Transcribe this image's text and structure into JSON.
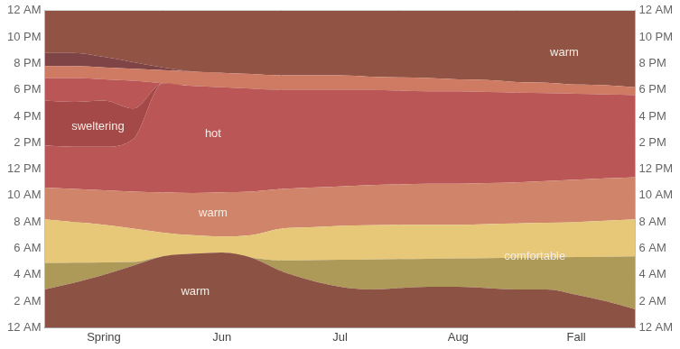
{
  "chart_data": {
    "type": "area",
    "stacked": true,
    "grid": true,
    "categories": [
      null,
      null,
      "Spring",
      null,
      null,
      null,
      "Jun",
      null,
      null,
      null,
      "Jul",
      null,
      null,
      null,
      "Aug",
      null,
      null,
      null,
      "Fall",
      null,
      null
    ],
    "series": [
      {
        "color": "#8c5244",
        "values": [
          2.9,
          3.4,
          4.0,
          4.7,
          5.4,
          5.6,
          5.7,
          5.3,
          4.3,
          3.6,
          3.1,
          2.9,
          3.0,
          3.1,
          3.1,
          3.0,
          2.9,
          2.9,
          2.5,
          2.0,
          1.4
        ]
      },
      {
        "color": "#ad9a58",
        "values": [
          2.0,
          1.52,
          0.95,
          0.27,
          0,
          0,
          0,
          0,
          0.8,
          1.52,
          2.05,
          2.27,
          2.2,
          2.12,
          2.15,
          2.27,
          2.4,
          2.42,
          2.85,
          3.37,
          4.0
        ]
      },
      {
        "color": "#e6c878",
        "values": [
          3.3,
          3.08,
          2.85,
          2.53,
          1.8,
          1.4,
          1.2,
          1.7,
          2.4,
          2.48,
          2.55,
          2.58,
          2.6,
          2.58,
          2.55,
          2.58,
          2.6,
          2.63,
          2.65,
          2.73,
          2.8
        ]
      },
      {
        "color": "#d0846a",
        "values": [
          2.4,
          2.5,
          2.6,
          2.8,
          3.05,
          3.2,
          3.35,
          3.3,
          3.0,
          3.0,
          3.0,
          3.05,
          3.05,
          3.1,
          3.1,
          3.1,
          3.1,
          3.15,
          3.2,
          3.2,
          3.2
        ]
      },
      {
        "color": "#bb5656",
        "values": [
          3.2,
          3.2,
          3.3,
          4.0,
          8.25,
          8.1,
          7.95,
          7.8,
          7.5,
          7.4,
          7.3,
          7.2,
          7.1,
          7.0,
          7.0,
          6.9,
          6.8,
          6.65,
          6.5,
          6.35,
          6.2
        ]
      },
      {
        "color": "#a44848",
        "values": [
          3.4,
          3.4,
          3.5,
          2.3,
          0,
          0,
          0,
          0,
          0,
          0,
          0,
          0,
          0,
          0,
          0,
          0,
          0,
          0,
          0,
          0,
          0
        ]
      },
      {
        "color": "#bb5656",
        "values": [
          1.7,
          1.8,
          1.6,
          2.1,
          0,
          0,
          0,
          0,
          0,
          0,
          0,
          0,
          0,
          0,
          0,
          0,
          0,
          0,
          0,
          0,
          0
        ]
      },
      {
        "color": "#cf7a62",
        "values": [
          0.9,
          0.9,
          0.9,
          0.9,
          1.0,
          1.1,
          1.1,
          1.1,
          1.1,
          1.1,
          1.1,
          1.0,
          1.0,
          1.0,
          0.9,
          0.9,
          0.8,
          0.8,
          0.7,
          0.7,
          0.6
        ]
      },
      {
        "color": "#7e4446",
        "values": [
          1.0,
          1.0,
          0.8,
          0.5,
          0.2,
          0,
          0,
          0,
          0,
          0,
          0,
          0,
          0,
          0,
          0,
          0,
          0,
          0,
          0,
          0,
          0
        ]
      },
      {
        "color": "#915344",
        "values": [
          3.2,
          3.2,
          3.5,
          3.9,
          4.3,
          4.6,
          4.7,
          4.8,
          4.9,
          4.9,
          4.9,
          5.0,
          5.05,
          5.1,
          5.2,
          5.25,
          5.4,
          5.45,
          5.6,
          5.65,
          5.8
        ]
      }
    ],
    "ylim": [
      0,
      24
    ],
    "yticks": [
      {
        "value": 0,
        "label": "12 AM"
      },
      {
        "value": 2,
        "label": "2 AM"
      },
      {
        "value": 4,
        "label": "4 AM"
      },
      {
        "value": 6,
        "label": "6 AM"
      },
      {
        "value": 8,
        "label": "8 AM"
      },
      {
        "value": 10,
        "label": "10 AM"
      },
      {
        "value": 12,
        "label": "12 PM"
      },
      {
        "value": 14,
        "label": "2 PM"
      },
      {
        "value": 16,
        "label": "4 PM"
      },
      {
        "value": 18,
        "label": "6 PM"
      },
      {
        "value": 20,
        "label": "8 PM"
      },
      {
        "value": 22,
        "label": "10 PM"
      },
      {
        "value": 24,
        "label": "12 AM"
      }
    ],
    "y2lim": [
      0,
      24
    ],
    "y2ticks": [
      {
        "value": 0,
        "label": "12 AM"
      },
      {
        "value": 2,
        "label": "2 AM"
      },
      {
        "value": 4,
        "label": "4 AM"
      },
      {
        "value": 6,
        "label": "6 AM"
      },
      {
        "value": 8,
        "label": "8 AM"
      },
      {
        "value": 10,
        "label": "10 AM"
      },
      {
        "value": 12,
        "label": "12 PM"
      },
      {
        "value": 14,
        "label": "2 PM"
      },
      {
        "value": 16,
        "label": "4 PM"
      },
      {
        "value": 18,
        "label": "6 PM"
      },
      {
        "value": 20,
        "label": "8 PM"
      },
      {
        "value": 22,
        "label": "10 PM"
      },
      {
        "value": 24,
        "label": "12 AM"
      }
    ],
    "annotations": [
      {
        "text": "sweltering",
        "x": 1.8,
        "y": 15.25
      },
      {
        "text": "hot",
        "x": 5.7,
        "y": 14.7
      },
      {
        "text": "warm",
        "x": 5.7,
        "y": 8.7
      },
      {
        "text": "warm",
        "x": 5.1,
        "y": 2.7
      },
      {
        "text": "warm",
        "x": 17.6,
        "y": 20.8
      },
      {
        "text": "comfortable",
        "x": 16.6,
        "y": 5.4
      }
    ]
  }
}
